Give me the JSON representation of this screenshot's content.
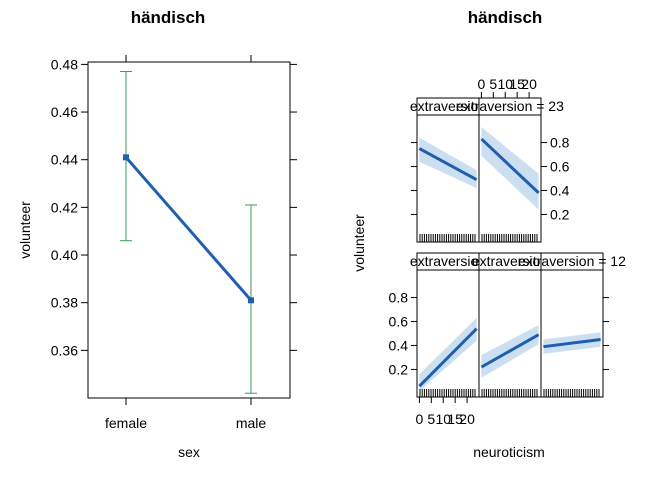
{
  "chart_data": [
    {
      "type": "line",
      "title": "händisch",
      "xlabel": "sex",
      "ylabel": "volunteer",
      "categories": [
        "female",
        "male"
      ],
      "values": [
        0.441,
        0.381
      ],
      "lower": [
        0.406,
        0.342
      ],
      "upper": [
        0.477,
        0.421
      ],
      "yticks": [
        "0.36",
        "0.38",
        "0.40",
        "0.42",
        "0.44",
        "0.46",
        "0.48"
      ],
      "ylim": [
        0.34,
        0.481
      ],
      "colors": {
        "line": "#1F5FAF",
        "ci": "#3A9A5A"
      }
    },
    {
      "type": "line",
      "title": "händisch",
      "xlabel": "neuroticism",
      "ylabel": "volunteer",
      "xticks": [
        "0",
        "5",
        "10",
        "15",
        "20"
      ],
      "xlim": [
        -1,
        25
      ],
      "yticks": [
        "0.2",
        "0.4",
        "0.6",
        "0.8"
      ],
      "ylim": [
        -0.03,
        1.03
      ],
      "colors": {
        "line": "#1F5FAF",
        "band": "#C7DCF0"
      },
      "panels": [
        {
          "strip": "extraversion",
          "x": [
            0,
            24
          ],
          "y": [
            0.75,
            0.49
          ],
          "lo": [
            0.64,
            0.42
          ],
          "hi": [
            0.84,
            0.57
          ]
        },
        {
          "strip": "extraversion = 23",
          "x": [
            0,
            24
          ],
          "y": [
            0.83,
            0.38
          ],
          "lo": [
            0.69,
            0.24
          ],
          "hi": [
            0.93,
            0.54
          ]
        },
        {
          "strip": "extraversion",
          "x": [
            0,
            24
          ],
          "y": [
            0.06,
            0.54
          ],
          "lo": [
            0.02,
            0.44
          ],
          "hi": [
            0.16,
            0.63
          ]
        },
        {
          "strip": "extraversion",
          "x": [
            0,
            24
          ],
          "y": [
            0.22,
            0.49
          ],
          "lo": [
            0.13,
            0.41
          ],
          "hi": [
            0.32,
            0.57
          ]
        },
        {
          "strip": "extraversion = 12",
          "x": [
            0,
            24
          ],
          "y": [
            0.39,
            0.45
          ],
          "lo": [
            0.33,
            0.39
          ],
          "hi": [
            0.45,
            0.51
          ]
        }
      ]
    }
  ]
}
